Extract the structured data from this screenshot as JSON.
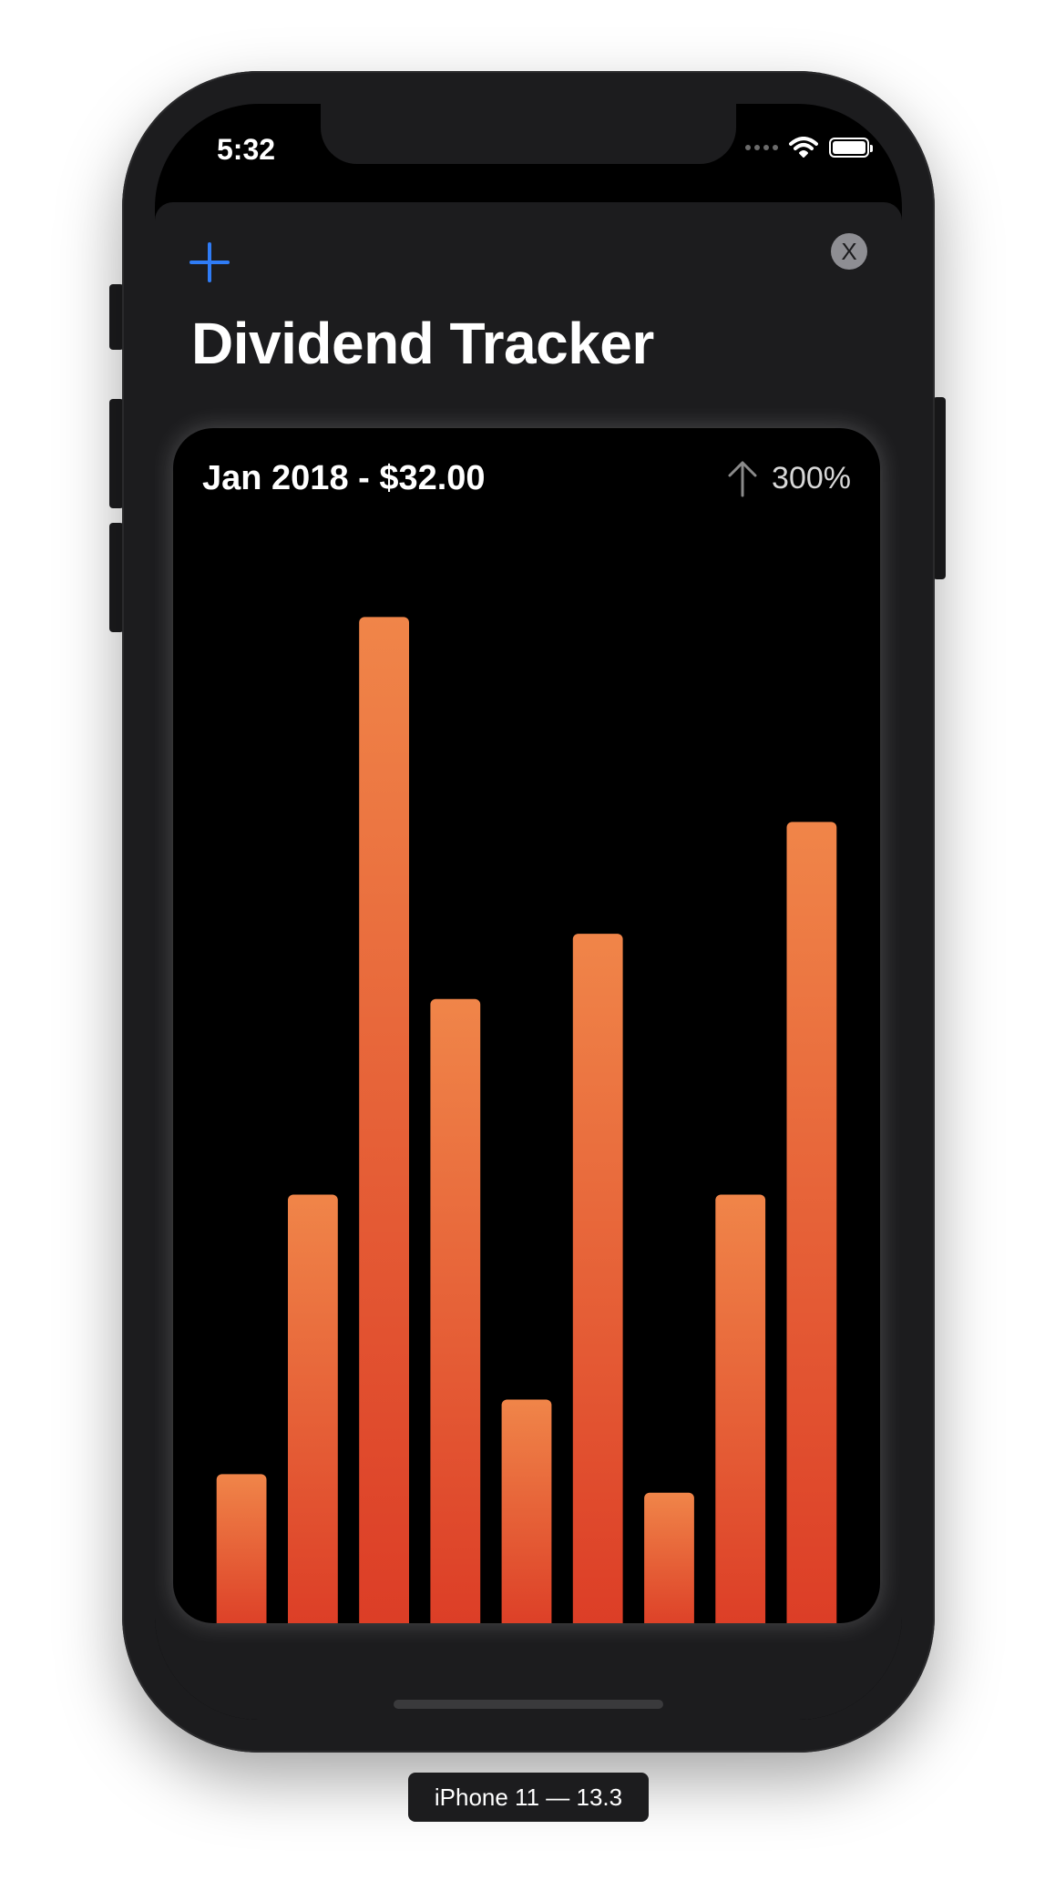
{
  "status_bar": {
    "time": "5:32",
    "icons": [
      "cellular-signal-icon",
      "wifi-icon",
      "battery-icon"
    ]
  },
  "header": {
    "add_icon": "plus-icon",
    "close_label": "X",
    "title": "Dividend Tracker"
  },
  "chart_card": {
    "selection_label": "Jan 2018 - $32.00",
    "change_icon": "arrow-up-icon",
    "change_value": "300%"
  },
  "chart_data": {
    "type": "bar",
    "values": [
      8,
      23,
      54,
      33.5,
      12,
      37,
      7,
      23,
      43
    ],
    "ylim": [
      0,
      57
    ],
    "grid": false,
    "legend": "none"
  },
  "device_label": "iPhone 11 — 13.3",
  "colors": {
    "accent": "#2f7cf6",
    "bar_top": "#f08549",
    "bar_bottom": "#dc3d26",
    "sheet": "#1c1c1e",
    "card": "#000000"
  }
}
